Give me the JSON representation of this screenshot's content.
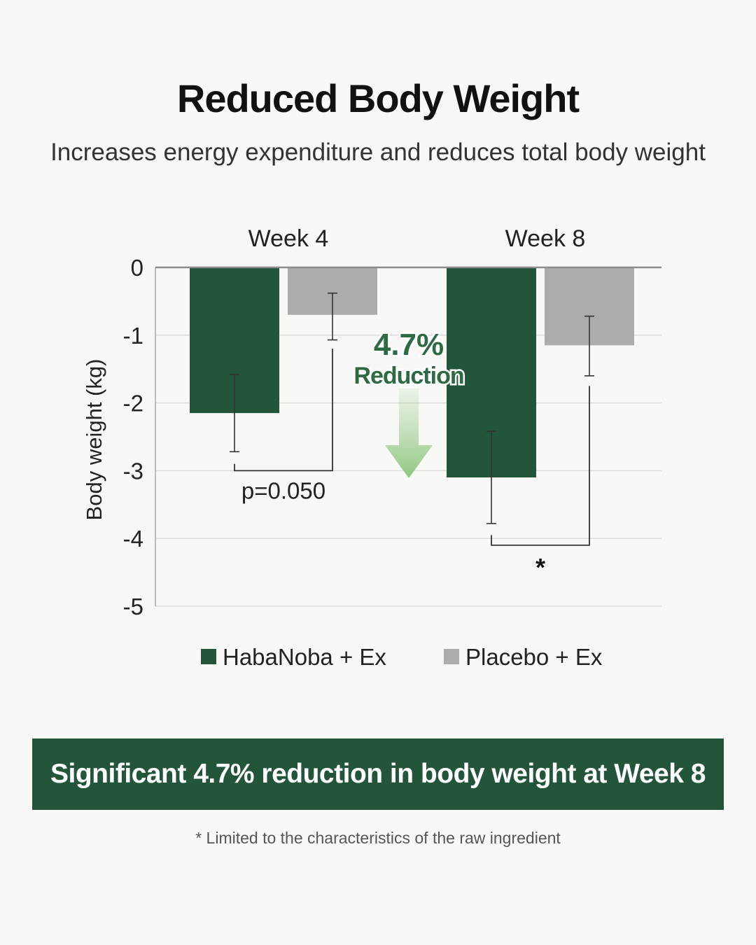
{
  "header": {
    "title": "Reduced Body Weight",
    "subtitle": "Increases energy expenditure and reduces total body weight"
  },
  "chart_data": {
    "type": "bar",
    "categories": [
      "Week 4",
      "Week 8"
    ],
    "series": [
      {
        "name": "HabaNoba + Ex",
        "color": "#23553b",
        "values": [
          -2.15,
          -3.1
        ],
        "error": [
          [
            -2.72,
            -1.58
          ],
          [
            -3.78,
            -2.42
          ]
        ]
      },
      {
        "name": "Placebo + Ex",
        "color": "#acacac",
        "values": [
          -0.7,
          -1.15
        ],
        "error": [
          [
            -1.07,
            -0.38
          ],
          [
            -1.6,
            -0.72
          ]
        ]
      }
    ],
    "ylabel": "Body weight (kg)",
    "ylim": [
      -5,
      0
    ],
    "yticks": [
      0,
      -1,
      -2,
      -3,
      -4,
      -5
    ],
    "grid": true,
    "legend_position": "bottom",
    "annotations": {
      "week4_p_value": "p=0.050",
      "week8_significance": "*",
      "callout_value": "4.7%",
      "callout_label": "Reduction"
    }
  },
  "banner": {
    "text": "Significant 4.7% reduction in body weight at Week 8"
  },
  "footnote": {
    "text": "* Limited to the characteristics of the raw ingredient"
  }
}
